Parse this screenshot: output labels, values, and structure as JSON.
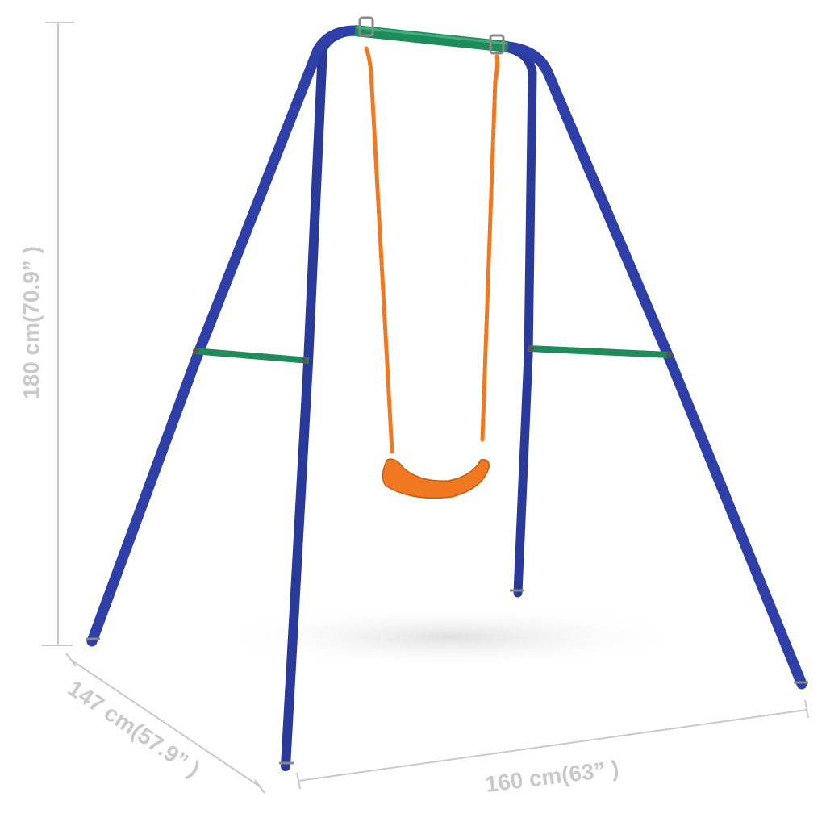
{
  "product": {
    "name": "swing-set",
    "colors": {
      "frame": "#2a3a9a",
      "crossbar": "#1f8a5a",
      "seat": "#f07820",
      "rope": "#f07820",
      "dimension": "#c9c9c9"
    }
  },
  "dimensions": {
    "height": "180 cm(70.9” )",
    "depth": "147 cm(57.9” )",
    "width": "160 cm(63” )"
  }
}
